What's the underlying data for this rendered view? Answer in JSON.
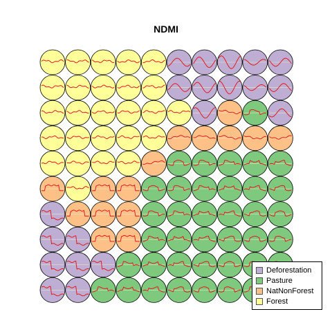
{
  "chart_data": {
    "type": "som-codes",
    "title": "NDMI",
    "grid": {
      "rows": 10,
      "cols": 10
    },
    "classes": [
      "Deforestation",
      "Pasture",
      "NatNonForest",
      "Forest"
    ],
    "colors": {
      "Deforestation": "#BEAED4",
      "Pasture": "#7FC97F",
      "NatNonForest": "#FDC086",
      "Forest": "#FFFF99"
    },
    "line_color": "#E41A1C",
    "legend_position": "bottom-right",
    "cells": [
      [
        "F",
        "F",
        "F",
        "F",
        "F",
        "D",
        "D",
        "D",
        "D",
        "D"
      ],
      [
        "F",
        "F",
        "F",
        "F",
        "F",
        "D",
        "D",
        "D",
        "D",
        "D"
      ],
      [
        "F",
        "F",
        "F",
        "F",
        "F",
        "F",
        "D",
        "N",
        "P",
        "D"
      ],
      [
        "F",
        "F",
        "F",
        "F",
        "F",
        "N",
        "N",
        "N",
        "N",
        "N"
      ],
      [
        "F",
        "F",
        "F",
        "F",
        "N",
        "P",
        "P",
        "P",
        "P",
        "P"
      ],
      [
        "N",
        "F",
        "N",
        "N",
        "P",
        "P",
        "P",
        "P",
        "P",
        "P"
      ],
      [
        "D",
        "N",
        "N",
        "N",
        "P",
        "P",
        "P",
        "P",
        "P",
        "P"
      ],
      [
        "D",
        "D",
        "N",
        "N",
        "P",
        "P",
        "P",
        "P",
        "P",
        "P"
      ],
      [
        "D",
        "D",
        "D",
        "P",
        "P",
        "P",
        "P",
        "P",
        "P",
        "P"
      ],
      [
        "D",
        "D",
        "P",
        "P",
        "P",
        "P",
        "P",
        "P",
        "P",
        "P"
      ]
    ],
    "class_codes": {
      "D": "Deforestation",
      "P": "Pasture",
      "N": "NatNonForest",
      "F": "Forest"
    }
  }
}
